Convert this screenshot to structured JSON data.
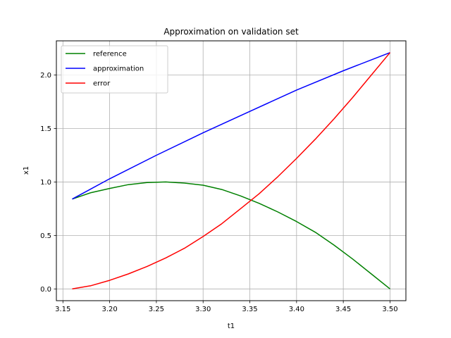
{
  "chart_data": {
    "type": "line",
    "title": "Approximation on validation set",
    "xlabel": "t1",
    "ylabel": "x1",
    "xlim": [
      3.143,
      3.517
    ],
    "ylim": [
      -0.11,
      2.32
    ],
    "xticks": [
      3.15,
      3.2,
      3.25,
      3.3,
      3.35,
      3.4,
      3.45,
      3.5
    ],
    "xtick_labels": [
      "3.15",
      "3.20",
      "3.25",
      "3.30",
      "3.35",
      "3.40",
      "3.45",
      "3.50"
    ],
    "yticks": [
      0.0,
      0.5,
      1.0,
      1.5,
      2.0
    ],
    "ytick_labels": [
      "0.0",
      "0.5",
      "1.0",
      "1.5",
      "2.0"
    ],
    "grid": true,
    "legend_position": "top-left",
    "series": [
      {
        "name": "reference",
        "color": "#008000",
        "x": [
          3.16,
          3.18,
          3.2,
          3.22,
          3.24,
          3.26,
          3.28,
          3.3,
          3.32,
          3.34,
          3.36,
          3.38,
          3.4,
          3.42,
          3.44,
          3.46,
          3.48,
          3.5
        ],
        "y": [
          0.84,
          0.9,
          0.94,
          0.975,
          0.995,
          1.0,
          0.99,
          0.97,
          0.93,
          0.87,
          0.8,
          0.72,
          0.63,
          0.53,
          0.41,
          0.28,
          0.14,
          0.0
        ]
      },
      {
        "name": "approximation",
        "color": "#0000ff",
        "x": [
          3.16,
          3.2,
          3.25,
          3.3,
          3.35,
          3.4,
          3.45,
          3.5
        ],
        "y": [
          0.84,
          1.03,
          1.25,
          1.46,
          1.66,
          1.86,
          2.04,
          2.21
        ]
      },
      {
        "name": "error",
        "color": "#ff0000",
        "x": [
          3.16,
          3.18,
          3.2,
          3.22,
          3.24,
          3.26,
          3.28,
          3.3,
          3.32,
          3.34,
          3.36,
          3.38,
          3.4,
          3.42,
          3.44,
          3.46,
          3.48,
          3.5
        ],
        "y": [
          0.0,
          0.03,
          0.08,
          0.14,
          0.21,
          0.29,
          0.38,
          0.49,
          0.61,
          0.75,
          0.89,
          1.05,
          1.22,
          1.4,
          1.59,
          1.79,
          2.0,
          2.21
        ]
      }
    ]
  }
}
